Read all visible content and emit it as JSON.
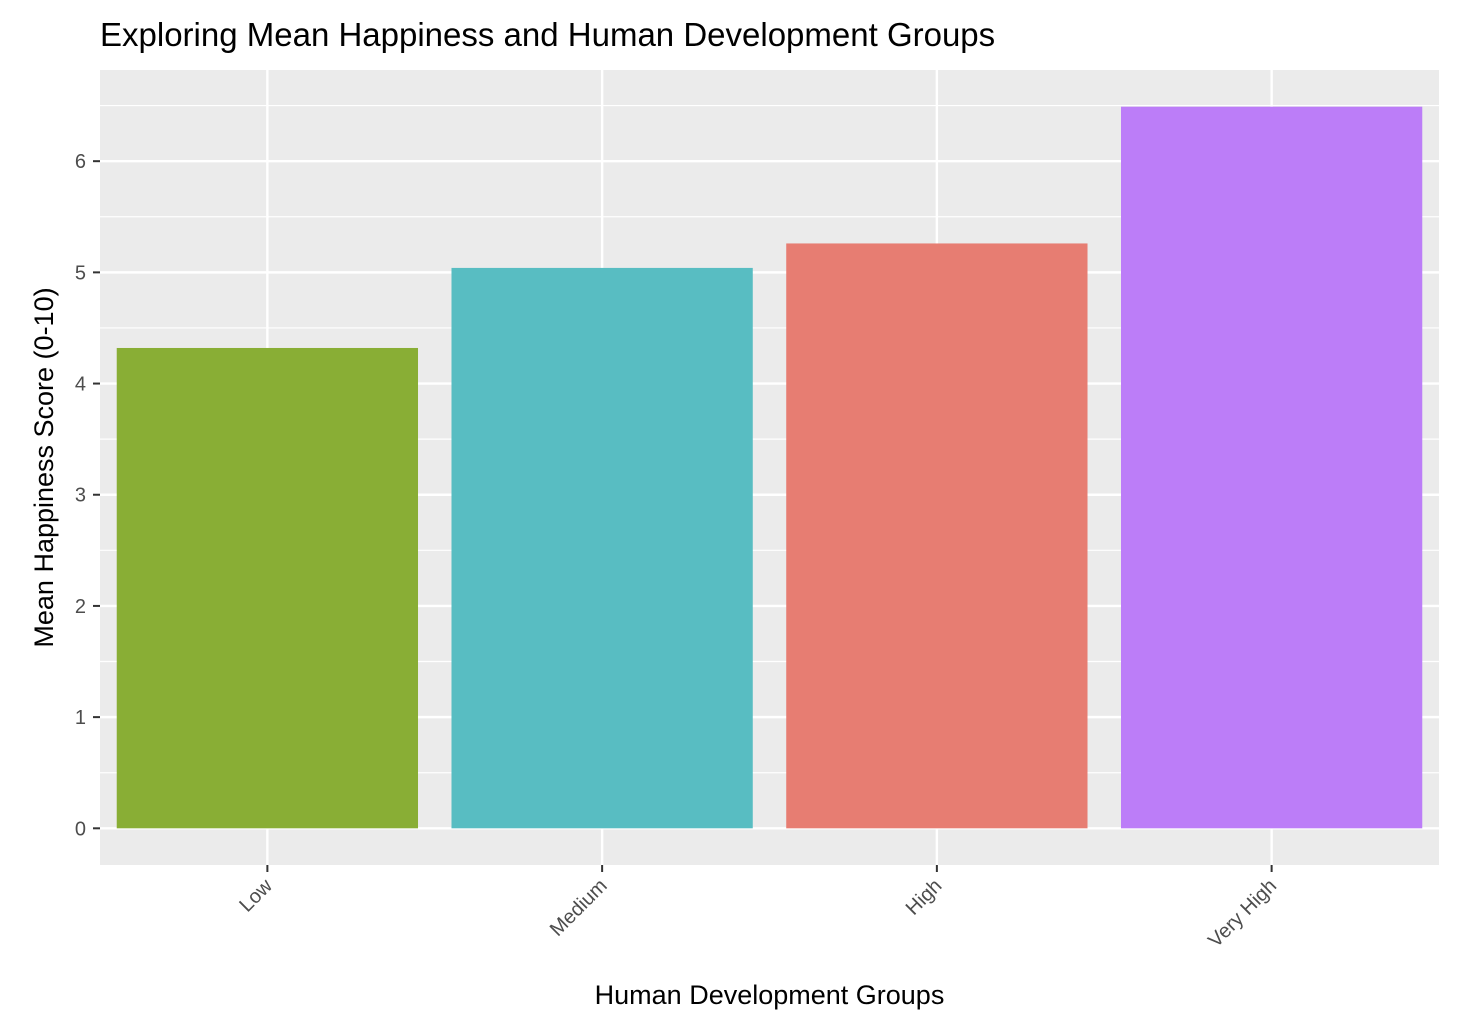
{
  "chart_data": {
    "type": "bar",
    "title": "Exploring Mean Happiness and Human Development Groups",
    "xlabel": "Human Development Groups",
    "ylabel": "Mean Happiness Score (0-10)",
    "categories": [
      "Low",
      "Medium",
      "High",
      "Very High"
    ],
    "values": [
      4.32,
      5.04,
      5.26,
      6.49
    ],
    "colors": [
      "#89AE35",
      "#58BDC2",
      "#E77D72",
      "#BC7DF8"
    ],
    "ylim": [
      -0.33,
      6.82
    ],
    "yticks": [
      0,
      1,
      2,
      3,
      4,
      5,
      6
    ],
    "ytick_labels": [
      "0",
      "1",
      "2",
      "3",
      "4",
      "5",
      "6"
    ],
    "grid": true,
    "legend": "none",
    "panel_background": "#EBEBEB",
    "gridline_color": "#FFFFFF"
  }
}
